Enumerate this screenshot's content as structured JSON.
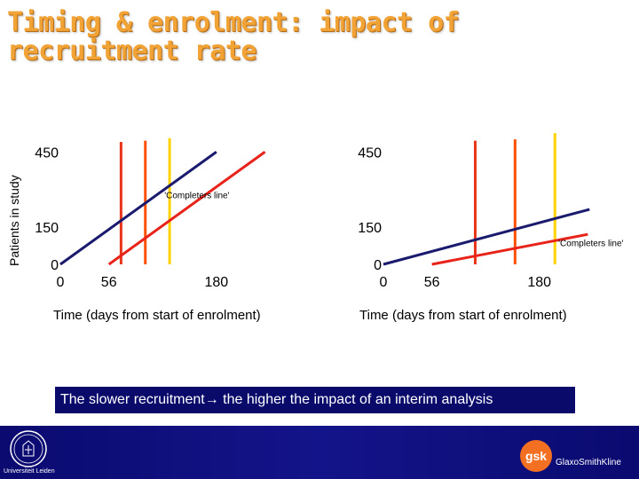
{
  "slide": {
    "title": "Timing & enrolment: impact of recruitment rate",
    "ylabel": "Patients in study",
    "note": "The slower recruitment→ the higher the impact of an interim analysis",
    "leiden_text": "Universiteit Leiden",
    "gsk_text": "GlaxoSmithKline",
    "gsk_logo_text": "gsk"
  },
  "chart_data": [
    {
      "type": "line",
      "title": "",
      "xlabel": "Time (days from start of enrolment)",
      "ylabel": "Patients in study",
      "xlim": [
        0,
        260
      ],
      "ylim": [
        0,
        490
      ],
      "x_ticks": [
        {
          "value": 0,
          "label": "0"
        },
        {
          "value": 56,
          "label": "56"
        },
        {
          "value": 180,
          "label": "180"
        }
      ],
      "y_ticks": [
        {
          "value": 0,
          "label": "0"
        },
        {
          "value": 150,
          "label": "150"
        },
        {
          "value": 450,
          "label": "450"
        }
      ],
      "annotation": {
        "text": "'Completers line'",
        "x": 120,
        "y": 265
      },
      "series": [
        {
          "color": "#1a1a6e",
          "points": [
            [
              0,
              0
            ],
            [
              180,
              450
            ]
          ]
        },
        {
          "color": "#e8231a",
          "points": [
            [
              56,
              0
            ],
            [
              236,
              450
            ]
          ]
        }
      ],
      "vlines": [
        {
          "x": 70,
          "ymax": 490,
          "color": "#e8351a"
        },
        {
          "x": 98,
          "ymax": 495,
          "color": "#ff5000"
        },
        {
          "x": 126,
          "ymax": 505,
          "color": "#ffd200"
        }
      ]
    },
    {
      "type": "line",
      "title": "",
      "xlabel": "Time (days from start of enrolment)",
      "ylabel": "",
      "xlim": [
        0,
        250
      ],
      "ylim": [
        0,
        490
      ],
      "x_ticks": [
        {
          "value": 0,
          "label": "0"
        },
        {
          "value": 56,
          "label": "56"
        },
        {
          "value": 180,
          "label": "180"
        }
      ],
      "y_ticks": [
        {
          "value": 0,
          "label": "0"
        },
        {
          "value": 150,
          "label": "150"
        },
        {
          "value": 450,
          "label": "450"
        }
      ],
      "annotation": {
        "text": "'Completers line'",
        "x": 202,
        "y": 72
      },
      "series": [
        {
          "color": "#1a1a6e",
          "points": [
            [
              0,
              0
            ],
            [
              238,
              220
            ]
          ]
        },
        {
          "color": "#e8231a",
          "points": [
            [
              56,
              0
            ],
            [
              236,
              120
            ]
          ]
        }
      ],
      "vlines": [
        {
          "x": 106,
          "ymax": 495,
          "color": "#e8351a"
        },
        {
          "x": 152,
          "ymax": 500,
          "color": "#ff5000"
        },
        {
          "x": 198,
          "ymax": 525,
          "color": "#ffd200"
        }
      ]
    }
  ]
}
